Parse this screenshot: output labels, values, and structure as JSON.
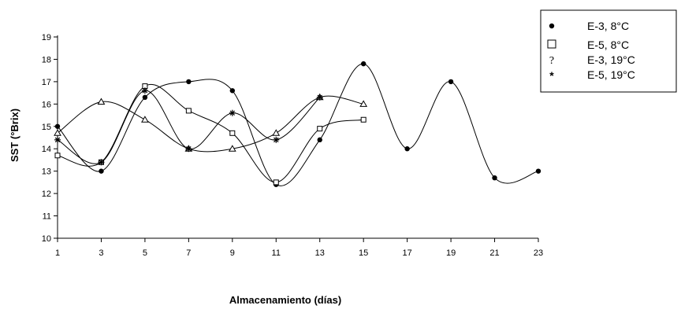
{
  "chart_data": {
    "type": "line",
    "xlabel": "Almacenamiento (días)",
    "ylabel": "SST (°Brix)",
    "xlim": [
      1,
      23
    ],
    "ylim": [
      10,
      19
    ],
    "x_ticks": [
      "1",
      "3",
      "5",
      "7",
      "9",
      "11",
      "13",
      "15",
      "17",
      "19",
      "21",
      "23"
    ],
    "y_ticks": [
      "10",
      "11",
      "12",
      "13",
      "14",
      "15",
      "16",
      "17",
      "18",
      "19"
    ],
    "legend_position": "top-right",
    "grid": false,
    "series": [
      {
        "name": "E-3, 8°C",
        "marker": "filled-circle",
        "x": [
          1,
          3,
          5,
          7,
          9,
          11,
          13,
          15,
          17,
          19,
          21,
          23
        ],
        "values": [
          15.0,
          13.0,
          16.3,
          17.0,
          16.6,
          12.4,
          14.4,
          17.8,
          14.0,
          17.0,
          12.7,
          13.0
        ]
      },
      {
        "name": "E-5, 8°C",
        "marker": "open-square",
        "x": [
          1,
          3,
          5,
          7,
          9,
          11,
          13,
          15
        ],
        "values": [
          13.7,
          13.4,
          16.8,
          15.7,
          14.7,
          12.5,
          14.9,
          15.3
        ]
      },
      {
        "name": "E-3, 19°C",
        "legend_symbol": "?",
        "marker": "open-triangle",
        "x": [
          1,
          3,
          5,
          7,
          9,
          11,
          13,
          15
        ],
        "values": [
          14.7,
          16.1,
          15.3,
          14.0,
          14.0,
          14.7,
          16.3,
          16.0
        ]
      },
      {
        "name": "E-5, 19°C",
        "marker": "asterisk",
        "x": [
          1,
          3,
          5,
          7,
          9,
          11,
          13
        ],
        "values": [
          14.4,
          13.4,
          16.6,
          14.0,
          15.6,
          14.4,
          16.3
        ]
      }
    ]
  }
}
